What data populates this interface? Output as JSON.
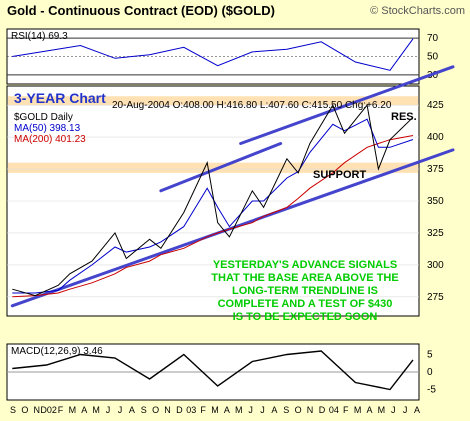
{
  "header": {
    "title": "Gold - Continuous Contract (EOD) ($GOLD)",
    "watermark": "© StockCharts.com"
  },
  "rsi_panel": {
    "label": "RSI(14) 69.3",
    "ticks": [
      "70",
      "50",
      "30"
    ]
  },
  "price_panel": {
    "chart_label": "3-YEAR Chart",
    "symbol_label": "$GOLD Daily",
    "quote": "20-Aug-2004  O:408.00  H:416.80  L:407.60  C:415.50  Chg:+6.20",
    "legend": [
      {
        "text": "MA(50) 398.13",
        "color": "#0000cc"
      },
      {
        "text": "MA(200) 401.23",
        "color": "#cc0000"
      }
    ],
    "annotations": {
      "resistance": "RES.",
      "support": "SUPPORT",
      "commentary": [
        "YESTERDAY'S ADVANCE SIGNALS",
        "THAT THE BASE AREA ABOVE THE",
        "LONG-TERM TRENDLINE IS",
        "COMPLETE AND A TEST OF $430",
        "IS TO BE EXPECTED SOON"
      ]
    }
  },
  "macd_panel": {
    "label": "MACD(12,26,9) 3.46",
    "ticks": [
      "5",
      "0",
      "-5"
    ]
  },
  "x_axis": {
    "ticks": [
      "S",
      "O",
      "N",
      "D02",
      "F",
      "M",
      "A",
      "M",
      "J",
      "J",
      "A",
      "S",
      "O",
      "N",
      "D",
      "03",
      "F",
      "M",
      "A",
      "M",
      "J",
      "J",
      "A",
      "S",
      "O",
      "N",
      "D",
      "04",
      "F",
      "M",
      "A",
      "M",
      "J",
      "J",
      "A"
    ]
  },
  "colors": {
    "background": "#ffffcc",
    "panel": "#ffffff",
    "price": "#000000",
    "ma50": "#0000cc",
    "ma200": "#cc0000",
    "trendline": "#4444cc",
    "band": "#ffd9a0",
    "commentary": "#00cc00",
    "label_blue": "#2233cc"
  },
  "chart_data": [
    {
      "type": "line",
      "name": "RSI(14)",
      "ylim": [
        20,
        80
      ],
      "reference_levels": [
        70,
        50,
        30
      ],
      "x": [
        "2001-09",
        "2001-12",
        "2002-03",
        "2002-06",
        "2002-09",
        "2002-12",
        "2003-03",
        "2003-06",
        "2003-09",
        "2003-12",
        "2004-03",
        "2004-06",
        "2004-08"
      ],
      "values": [
        50,
        56,
        62,
        48,
        52,
        60,
        40,
        55,
        58,
        66,
        44,
        35,
        69.3
      ]
    },
    {
      "type": "line",
      "ylim": [
        260,
        440
      ],
      "ticks": [
        275,
        300,
        325,
        350,
        375,
        400,
        425
      ],
      "x": [
        "2001-09",
        "2001-11",
        "2002-01",
        "2002-02",
        "2002-04",
        "2002-06",
        "2002-07",
        "2002-09",
        "2002-10",
        "2002-12",
        "2003-02",
        "2003-03",
        "2003-04",
        "2003-06",
        "2003-07",
        "2003-09",
        "2003-10",
        "2003-11",
        "2004-01",
        "2004-02",
        "2004-04",
        "2004-05",
        "2004-06",
        "2004-08"
      ],
      "series": [
        {
          "name": "$GOLD",
          "values": [
            281,
            276,
            284,
            293,
            303,
            325,
            305,
            320,
            313,
            341,
            380,
            333,
            322,
            358,
            345,
            383,
            372,
            395,
            425,
            403,
            425,
            375,
            398,
            415.5
          ]
        },
        {
          "name": "MA(50)",
          "values": [
            278,
            278,
            280,
            288,
            300,
            314,
            310,
            314,
            318,
            330,
            360,
            345,
            330,
            350,
            350,
            368,
            373,
            388,
            410,
            405,
            414,
            392,
            392,
            398.13
          ]
        },
        {
          "name": "MA(200)",
          "values": [
            275,
            276,
            278,
            281,
            286,
            293,
            298,
            303,
            308,
            313,
            322,
            325,
            328,
            333,
            338,
            345,
            352,
            360,
            372,
            380,
            392,
            395,
            398,
            401.23
          ]
        }
      ],
      "bands": [
        {
          "label": "RES.",
          "range": [
            425,
            432
          ]
        },
        {
          "label": "SUPPORT",
          "range": [
            372,
            380
          ]
        }
      ]
    },
    {
      "type": "line",
      "name": "MACD(12,26,9)",
      "ylim": [
        -8,
        8
      ],
      "ticks": [
        5,
        0,
        -5
      ],
      "x": [
        "2001-09",
        "2001-12",
        "2002-03",
        "2002-06",
        "2002-09",
        "2002-12",
        "2003-03",
        "2003-06",
        "2003-09",
        "2003-12",
        "2004-03",
        "2004-06",
        "2004-08"
      ],
      "values": [
        1,
        2,
        5,
        4,
        -2,
        5,
        -4,
        3,
        5,
        6,
        -3,
        -5,
        3.46
      ]
    }
  ]
}
